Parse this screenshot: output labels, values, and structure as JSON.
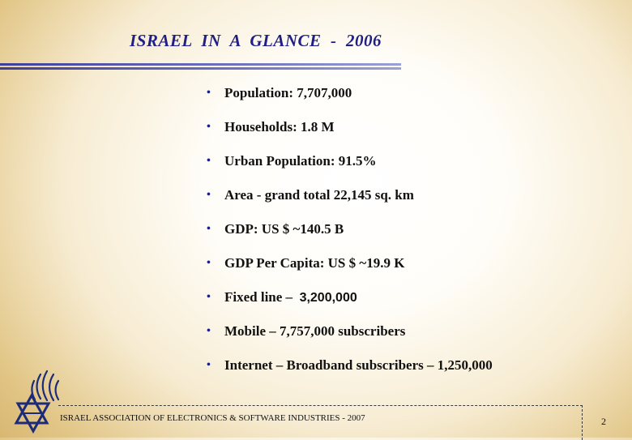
{
  "slide": {
    "title": "ISRAEL  IN  A  GLANCE  -  2006",
    "bullet_glyph": "•",
    "bullets": [
      {
        "text": "Population: 7,707,000"
      },
      {
        "text": "Households: 1.8 M"
      },
      {
        "text": "Urban Population: 91.5%"
      },
      {
        "text": "Area - grand total 22,145 sq. km"
      },
      {
        "text": "GDP: US $ ~140.5 B"
      },
      {
        "text": "GDP  Per Capita: US $ ~19.9 K"
      },
      {
        "text": "Fixed line –",
        "number": "3,200,000"
      },
      {
        "text": "Mobile – 7,757,000 subscribers"
      },
      {
        "text": "Internet – Broadband subscribers – 1,250,000"
      }
    ]
  },
  "footer": {
    "organization": "ISRAEL ASSOCIATION OF ELECTRONICS & SOFTWARE INDUSTRIES  - 2007",
    "page_number": "2"
  },
  "logo": {
    "icon": "star-of-david-flame-logo-icon"
  },
  "colors": {
    "title": "#1f1f86",
    "text": "#111111",
    "background_edge": "#d2ad62",
    "logo": "#1d2c78"
  }
}
